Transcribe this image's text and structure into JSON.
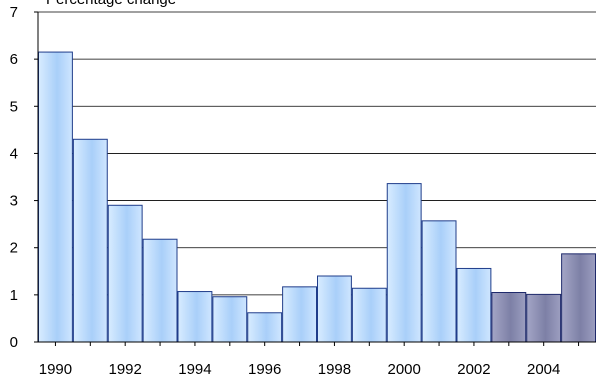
{
  "chart_data": {
    "type": "bar",
    "title": "",
    "ylabel": "Percentage change",
    "xlabel": "",
    "ylim": [
      0,
      7
    ],
    "yticks": [
      0,
      1,
      2,
      3,
      4,
      5,
      6,
      7
    ],
    "categories": [
      "1990",
      "1991",
      "1992",
      "1993",
      "1994",
      "1995",
      "1996",
      "1997",
      "1998",
      "1999",
      "2000",
      "2001",
      "2002",
      "2003",
      "2004",
      "2005"
    ],
    "xtick_labels": [
      "1990",
      "1992",
      "1994",
      "1996",
      "1998",
      "2000",
      "2002",
      "2004"
    ],
    "values": [
      6.15,
      4.3,
      2.9,
      2.18,
      1.07,
      0.96,
      0.62,
      1.17,
      1.4,
      1.14,
      3.36,
      2.57,
      1.56,
      1.05,
      1.01,
      1.87
    ],
    "grid": true,
    "colors": {
      "historical_fill": "#bcdcff",
      "historical_stroke": "#1f3c8a",
      "forecast_fill": "#8a8cae",
      "forecast_stroke": "#1f2a6b"
    },
    "forecast_from": "2003"
  }
}
